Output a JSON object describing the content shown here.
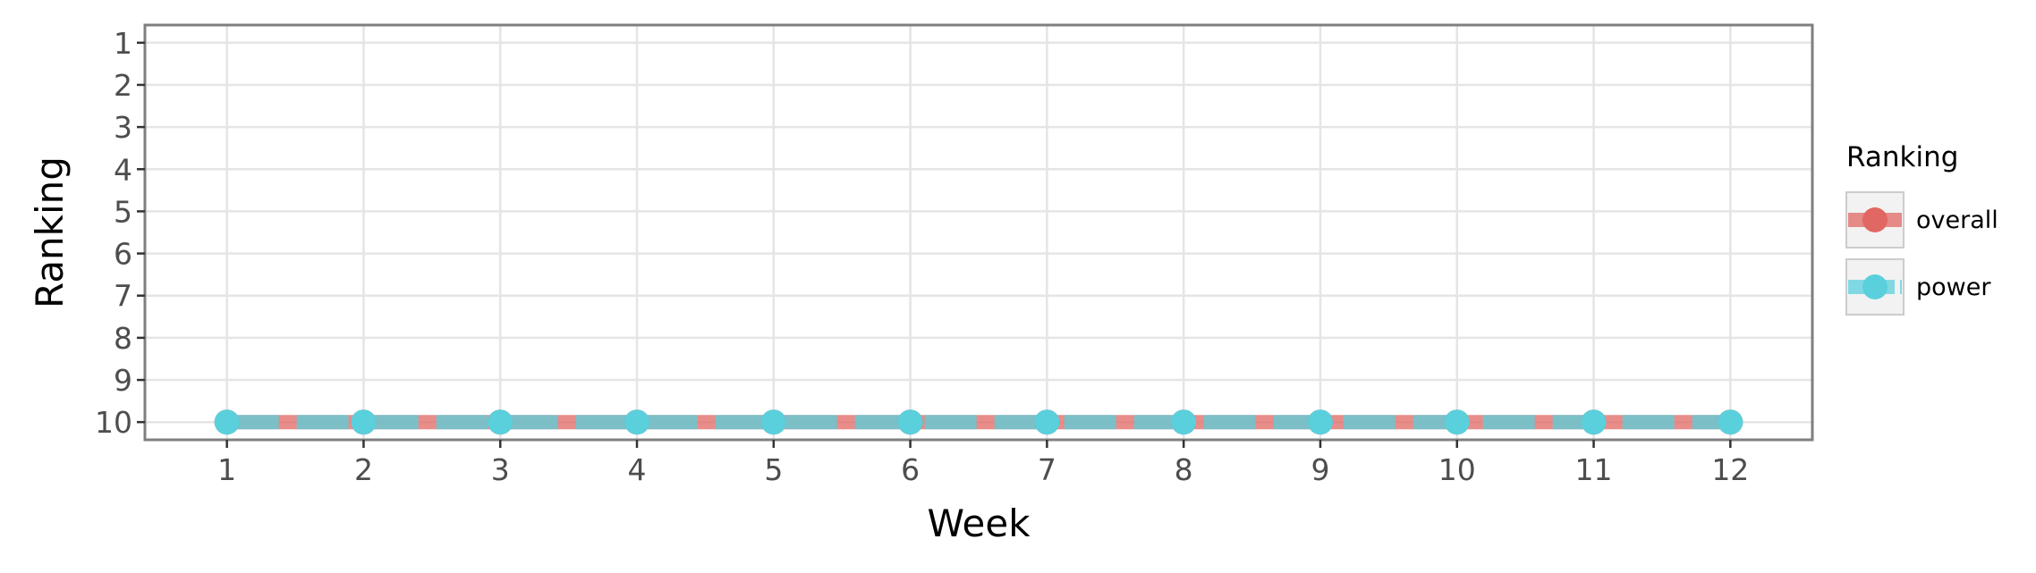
{
  "chart_data": {
    "type": "line",
    "title": "",
    "xlabel": "Week",
    "ylabel": "Ranking",
    "x": [
      1,
      2,
      3,
      4,
      5,
      6,
      7,
      8,
      9,
      10,
      11,
      12
    ],
    "x_ticks": [
      "1",
      "2",
      "3",
      "4",
      "5",
      "6",
      "7",
      "8",
      "9",
      "10",
      "11",
      "12"
    ],
    "y_ticks": [
      "1",
      "2",
      "3",
      "4",
      "5",
      "6",
      "7",
      "8",
      "9",
      "10"
    ],
    "ylim": [
      1,
      10
    ],
    "y_reversed": true,
    "grid": true,
    "legend": {
      "title": "Ranking",
      "placement": "right"
    },
    "series": [
      {
        "name": "overall",
        "color": "#e06762",
        "line_style": "solid",
        "values": [
          10,
          10,
          10,
          10,
          10,
          10,
          10,
          10,
          10,
          10,
          10,
          10
        ]
      },
      {
        "name": "power",
        "color": "#5ad0dc",
        "line_style": "dashed",
        "values": [
          10,
          10,
          10,
          10,
          10,
          10,
          10,
          10,
          10,
          10,
          10,
          10
        ]
      }
    ]
  }
}
